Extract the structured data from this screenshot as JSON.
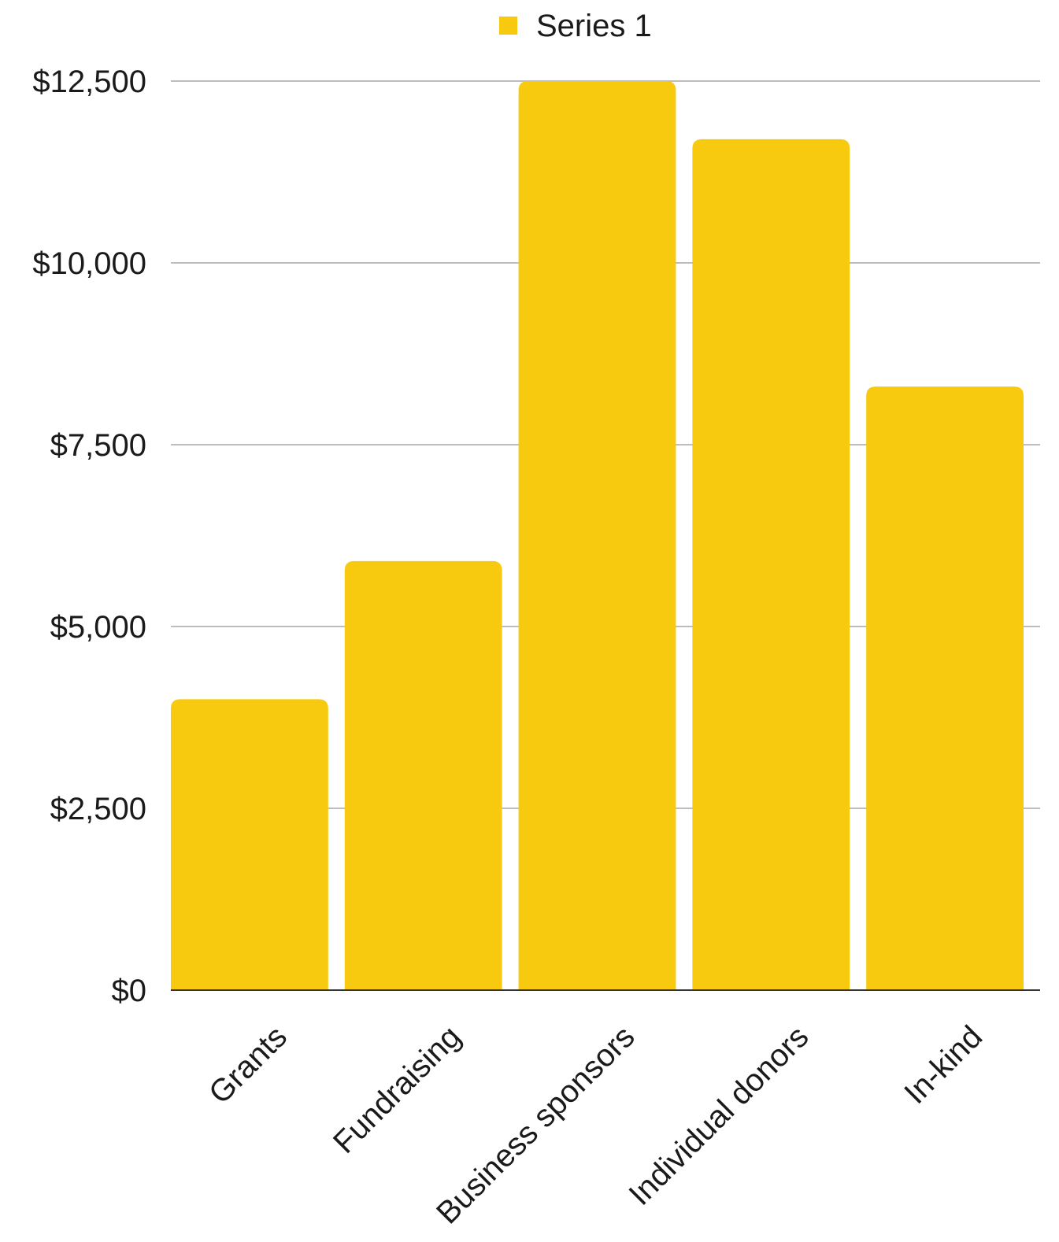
{
  "chart_data": {
    "type": "bar",
    "categories": [
      "Grants",
      "Fundraising",
      "Business sponsors",
      "Individual donors",
      "In-kind"
    ],
    "series": [
      {
        "name": "Series 1",
        "values": [
          4000,
          5900,
          12500,
          11700,
          8300
        ]
      }
    ],
    "ylim": [
      0,
      12500
    ],
    "yticks": [
      0,
      2500,
      5000,
      7500,
      10000,
      12500
    ],
    "ytick_labels": [
      "$0",
      "$2,500",
      "$5,000",
      "$7,500",
      "$10,000",
      "$12,500"
    ],
    "grid": true,
    "legend": "top-center",
    "bar_color": "#F7CA0F",
    "grid_color": "#BDBDBD",
    "axis_color": "#333333"
  }
}
